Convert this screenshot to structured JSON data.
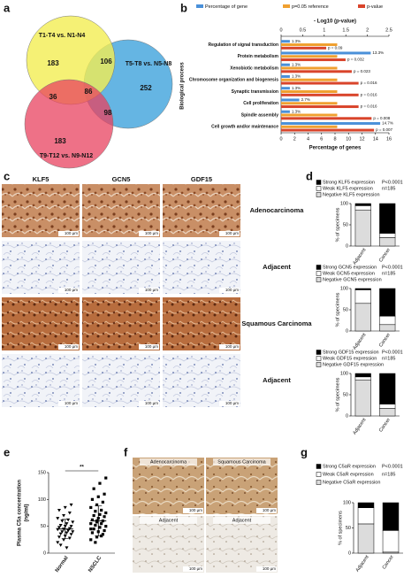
{
  "panels": {
    "a": {
      "letter": "a",
      "sets": [
        "T1-T4 vs. N1-N4",
        "T5-T8 vs. N5-N8",
        "T9-T12 vs. N9-N12"
      ],
      "counts": [
        183,
        106,
        252,
        36,
        86,
        98,
        183
      ]
    },
    "b": {
      "letter": "b",
      "type": "bar",
      "orientation": "horizontal",
      "x_label": "Percentage of genes",
      "x2_label": "- Log10 (p-value)",
      "y_label": "Biological process",
      "categories": [
        "Regulation of signal transduction",
        "Protein metabolism",
        "Xenobiotic metabolism",
        "Chromosome organization and biogenesis",
        "Synaptic transmission",
        "Cell proliferation",
        "Spindle assembly",
        "Cell growth and/or maintenance"
      ],
      "series": [
        {
          "name": "Percentage of gene",
          "color": "#4a90d9",
          "values": [
            1.3,
            13.3,
            1.3,
            1.3,
            1.3,
            2.7,
            1.3,
            14.7
          ],
          "value_labels": [
            "1.3%",
            "13.3%",
            "1.3%",
            "1.3%",
            "1.3%",
            "2.7%",
            "1.3%",
            "14.7%"
          ]
        },
        {
          "name": "p=0.05 reference",
          "color": "#f0a030",
          "axis": "x2",
          "values": [
            0.05,
            0.05,
            0.05,
            0.05,
            0.05,
            0.05,
            0.05,
            0.05
          ]
        },
        {
          "name": "p-value",
          "color": "#d9442b",
          "axis": "x2",
          "values": [
            0.09,
            0.032,
            0.023,
            0.016,
            0.016,
            0.016,
            0.008,
            0.007
          ],
          "value_labels": [
            "p = 0.09",
            "p = 0.032",
            "p = 0.023",
            "p = 0.016",
            "p = 0.016",
            "p = 0.016",
            "p = 0.008",
            "p = 0.007"
          ]
        }
      ],
      "xlim": [
        0,
        16
      ],
      "xticks": [
        0,
        2,
        4,
        6,
        8,
        10,
        12,
        14,
        16
      ],
      "x2lim": [
        0,
        2.5
      ],
      "x2ticks": [
        0,
        0.5,
        1,
        1.5,
        2,
        2.5
      ],
      "x2_scale": "neg_log10"
    },
    "c": {
      "letter": "c",
      "columns": [
        "KLF5",
        "GCN5",
        "GDF15"
      ],
      "rows": [
        "Adenocarcinoma",
        "Adjacent",
        "Squamous Carcinoma",
        "Adjacent"
      ],
      "scale_bar": "100 µm"
    },
    "d": {
      "letter": "d",
      "charts": [
        {
          "y_label": "% of specimens",
          "p_text": "P<0.0001",
          "n_text": "n=185",
          "categories": [
            "Adjacent",
            "Cancer"
          ],
          "ylim": [
            0,
            100
          ],
          "yticks": [
            0,
            50,
            100
          ],
          "series": [
            {
              "name": "Strong KLF5 expression",
              "color": "#000000",
              "values": [
                5,
                70
              ]
            },
            {
              "name": "Weak KLF5 expression",
              "color": "#ffffff",
              "values": [
                10,
                10
              ]
            },
            {
              "name": "Negative KLF5 expression",
              "color": "#dcdcdc",
              "values": [
                85,
                20
              ]
            }
          ]
        },
        {
          "y_label": "% of specimens",
          "p_text": "P<0.0001",
          "n_text": "n=185",
          "categories": [
            "Adjacent",
            "Cancer"
          ],
          "ylim": [
            0,
            100
          ],
          "yticks": [
            0,
            50,
            100
          ],
          "series": [
            {
              "name": "Strong GCN5 expression",
              "color": "#000000",
              "values": [
                3,
                65
              ]
            },
            {
              "name": "Weak GCN5 expression",
              "color": "#ffffff",
              "values": [
                32,
                20
              ]
            },
            {
              "name": "Negative GCN5 expression",
              "color": "#dcdcdc",
              "values": [
                65,
                15
              ]
            }
          ]
        },
        {
          "y_label": "% of specimens",
          "p_text": "P<0.0001",
          "n_text": "n=185",
          "categories": [
            "Adjacent",
            "Cancer"
          ],
          "ylim": [
            0,
            100
          ],
          "yticks": [
            0,
            50,
            100
          ],
          "series": [
            {
              "name": "Strong GDF15 expression",
              "color": "#000000",
              "values": [
                8,
                72
              ]
            },
            {
              "name": "Weak GDF15 expression",
              "color": "#ffffff",
              "values": [
                7,
                10
              ]
            },
            {
              "name": "Negative GDF15 expression",
              "color": "#dcdcdc",
              "values": [
                85,
                18
              ]
            }
          ]
        }
      ]
    },
    "e": {
      "letter": "e",
      "type": "scatter",
      "y_label": [
        "Plasma C5a concentration",
        "(ng/ml)"
      ],
      "categories": [
        "Normal",
        "NSCLC"
      ],
      "values": [
        [
          20,
          25,
          28,
          30,
          32,
          35,
          36,
          38,
          40,
          40,
          42,
          44,
          45,
          46,
          48,
          50,
          50,
          52,
          55,
          58,
          60,
          62,
          65,
          70,
          75,
          80,
          85,
          90,
          15,
          10
        ],
        [
          25,
          30,
          35,
          38,
          40,
          42,
          45,
          48,
          50,
          52,
          55,
          55,
          58,
          60,
          62,
          65,
          68,
          70,
          72,
          75,
          78,
          80,
          85,
          90,
          95,
          100,
          105,
          110,
          120,
          130,
          140,
          20,
          32,
          45,
          60
        ]
      ],
      "means": [
        45,
        60
      ],
      "sd": [
        18,
        28
      ],
      "significance": "**",
      "ylim": [
        0,
        150
      ],
      "yticks": [
        0,
        50,
        100,
        150
      ]
    },
    "f": {
      "letter": "f",
      "images": [
        "Adenocarcinoma",
        "Squamous Carcinoma",
        "Adjacent",
        "Adjacent"
      ],
      "scale_bar": "100 µm"
    },
    "g": {
      "letter": "g",
      "y_label": "% of specimens",
      "p_text": "P<0.0001",
      "n_text": "n=185",
      "categories": [
        "Adjacent",
        "Cancer"
      ],
      "ylim": [
        0,
        100
      ],
      "yticks": [
        0,
        50,
        100
      ],
      "series": [
        {
          "name": "Strong C5aR expression",
          "color": "#000000",
          "values": [
            10,
            55
          ]
        },
        {
          "name": "Weak C5aR expression",
          "color": "#ffffff",
          "values": [
            32,
            43
          ]
        },
        {
          "name": "Negative C5aR expression",
          "color": "#dcdcdc",
          "values": [
            58,
            2
          ]
        }
      ]
    }
  }
}
